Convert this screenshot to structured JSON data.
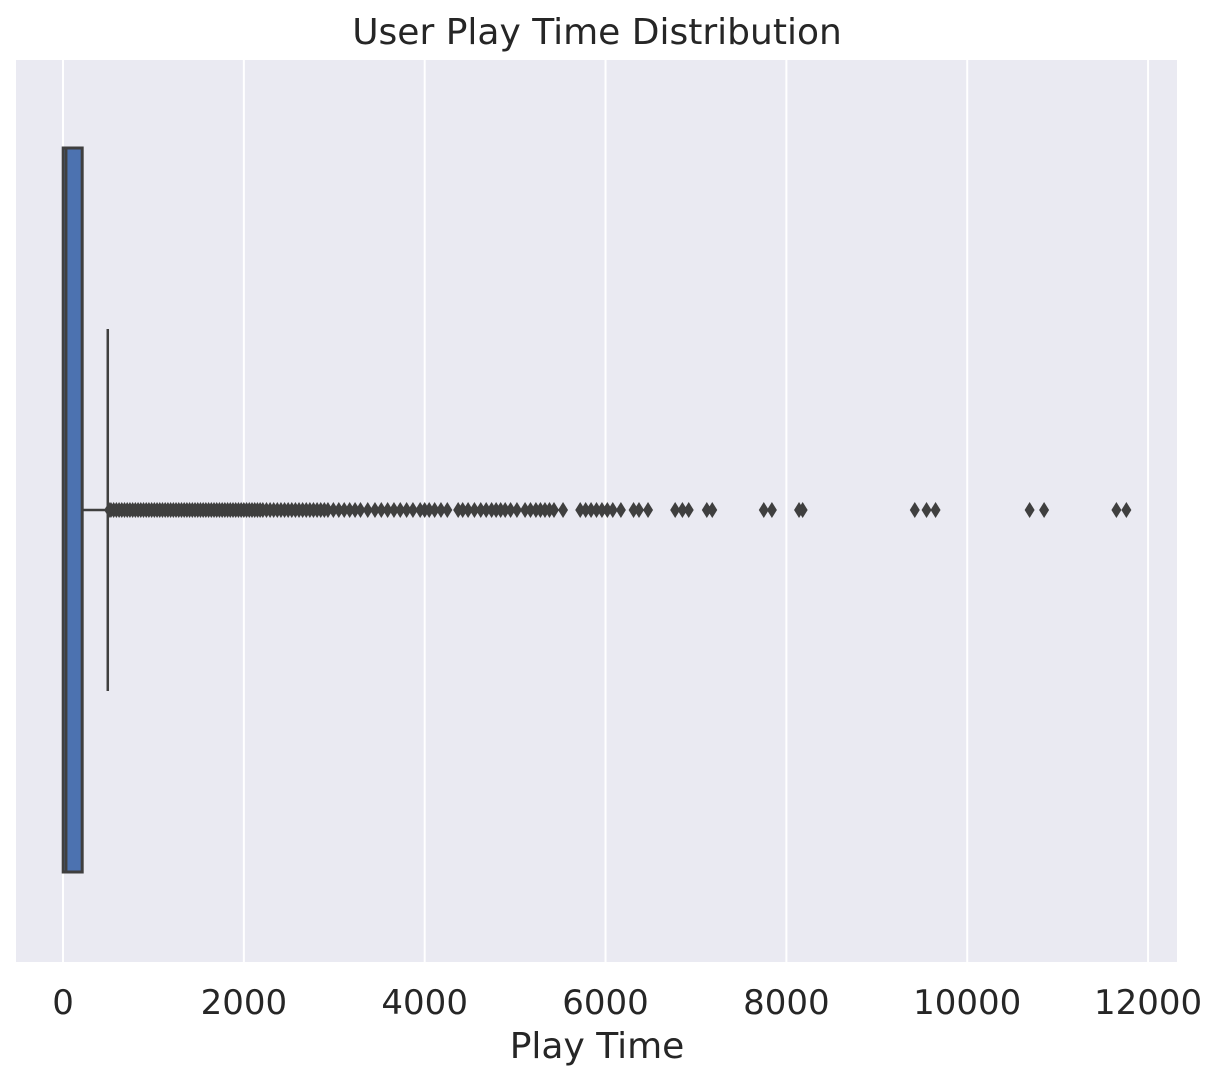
{
  "chart_data": {
    "type": "box",
    "orientation": "horizontal",
    "title": "User Play Time Distribution",
    "xlabel": "Play Time",
    "ylabel": "",
    "xlim": [
      -520,
      12320
    ],
    "xticks": [
      0,
      2000,
      4000,
      6000,
      8000,
      10000,
      12000
    ],
    "xtick_labels": [
      "0",
      "2000",
      "4000",
      "6000",
      "8000",
      "10000",
      "12000"
    ],
    "grid": true,
    "style": "darkgrid",
    "colors": {
      "plot_background": "#eaeaf2",
      "grid": "#ffffff",
      "box_fill": "#4c72b0",
      "box_edge": "#3f3f3f",
      "text": "#262626"
    },
    "box": {
      "min": 0,
      "q1": 2,
      "median": 35,
      "q3": 212,
      "whisker_low": 0,
      "whisker_high": 495
    },
    "outliers": [
      510,
      530,
      560,
      590,
      620,
      650,
      680,
      710,
      740,
      770,
      800,
      830,
      860,
      890,
      920,
      950,
      980,
      1010,
      1040,
      1070,
      1100,
      1130,
      1160,
      1190,
      1220,
      1250,
      1280,
      1310,
      1340,
      1370,
      1400,
      1430,
      1460,
      1490,
      1520,
      1550,
      1580,
      1610,
      1640,
      1670,
      1700,
      1730,
      1760,
      1790,
      1820,
      1850,
      1880,
      1910,
      1940,
      1970,
      2000,
      2030,
      2060,
      2090,
      2120,
      2150,
      2180,
      2210,
      2250,
      2290,
      2330,
      2370,
      2410,
      2450,
      2490,
      2530,
      2570,
      2610,
      2650,
      2690,
      2730,
      2770,
      2810,
      2850,
      2890,
      2930,
      2990,
      3050,
      3110,
      3170,
      3230,
      3290,
      3370,
      3450,
      3520,
      3590,
      3660,
      3730,
      3800,
      3870,
      3950,
      4000,
      4050,
      4110,
      4180,
      4250,
      4370,
      4420,
      4480,
      4550,
      4620,
      4680,
      4740,
      4790,
      4840,
      4890,
      4950,
      5020,
      5110,
      5170,
      5230,
      5280,
      5330,
      5380,
      5430,
      5530,
      5720,
      5780,
      5840,
      5900,
      5960,
      6020,
      6080,
      6170,
      6310,
      6370,
      6470,
      6770,
      6850,
      6920,
      7120,
      7180,
      7750,
      7840,
      8140,
      8180,
      9420,
      9550,
      9650,
      10690,
      10850,
      11650,
      11760
    ]
  }
}
